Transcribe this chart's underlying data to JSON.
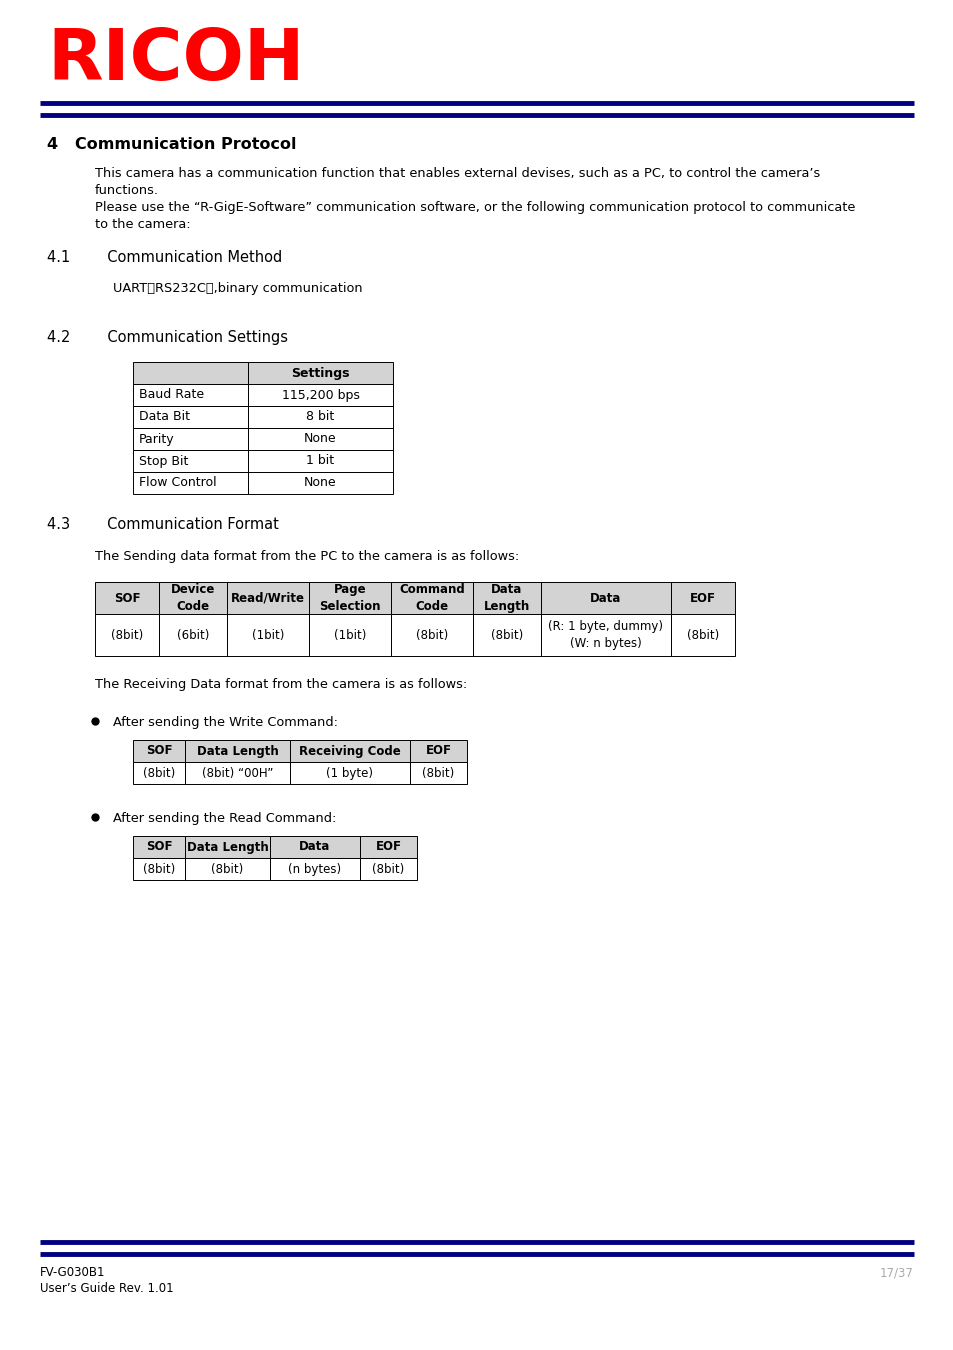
{
  "page_bg": "#ffffff",
  "header_logo_text": "RICOH",
  "header_logo_color": "#ff0000",
  "line_dark": "#000080",
  "line_light": "#ffffff",
  "section_title": "4   Communication Protocol",
  "section_41": "4.1        Communication Method",
  "text_41": "UART（RS232C）,binary communication",
  "section_42": "4.2        Communication Settings",
  "settings_table_header": [
    "",
    "Settings"
  ],
  "settings_table_rows": [
    [
      "Baud Rate",
      "115,200 bps"
    ],
    [
      "Data Bit",
      "8 bit"
    ],
    [
      "Parity",
      "None"
    ],
    [
      "Stop Bit",
      "1 bit"
    ],
    [
      "Flow Control",
      "None"
    ]
  ],
  "section_43": "4.3        Communication Format",
  "text_43": "The Sending data format from the PC to the camera is as follows:",
  "send_table_header": [
    "SOF",
    "Device\nCode",
    "Read/Write",
    "Page\nSelection",
    "Command\nCode",
    "Data\nLength",
    "Data",
    "EOF"
  ],
  "send_table_row1": [
    "(8bit)",
    "(6bit)",
    "(1bit)",
    "(1bit)",
    "(8bit)",
    "(8bit)",
    "(R: 1 byte, dummy)\n(W: n bytes)",
    "(8bit)"
  ],
  "text_receive": "The Receiving Data format from the camera is as follows:",
  "bullet_write": "After sending the Write Command:",
  "write_table_header": [
    "SOF",
    "Data Length",
    "Receiving Code",
    "EOF"
  ],
  "write_table_row": [
    "(8bit)",
    "(8bit) “00H”",
    "(1 byte)",
    "(8bit)"
  ],
  "bullet_read": "After sending the Read Command:",
  "read_table_header": [
    "SOF",
    "Data Length",
    "Data",
    "EOF"
  ],
  "read_table_row": [
    "(8bit)",
    "(8bit)",
    "(n bytes)",
    "(8bit)"
  ],
  "footer_left1": "FV-G030B1",
  "footer_left2": "User’s Guide Rev. 1.01",
  "footer_right": "17/37",
  "text_color": "#000000",
  "gray_cell": "#d3d3d3",
  "table_border": "#000000",
  "body_line1": "This camera has a communication function that enables external devises, such as a PC, to control the camera’s",
  "body_line2": "functions.",
  "body_line3": "Please use the “R-GigE-Software” communication software, or the following communication protocol to communicate",
  "body_line4": "to the camera:"
}
